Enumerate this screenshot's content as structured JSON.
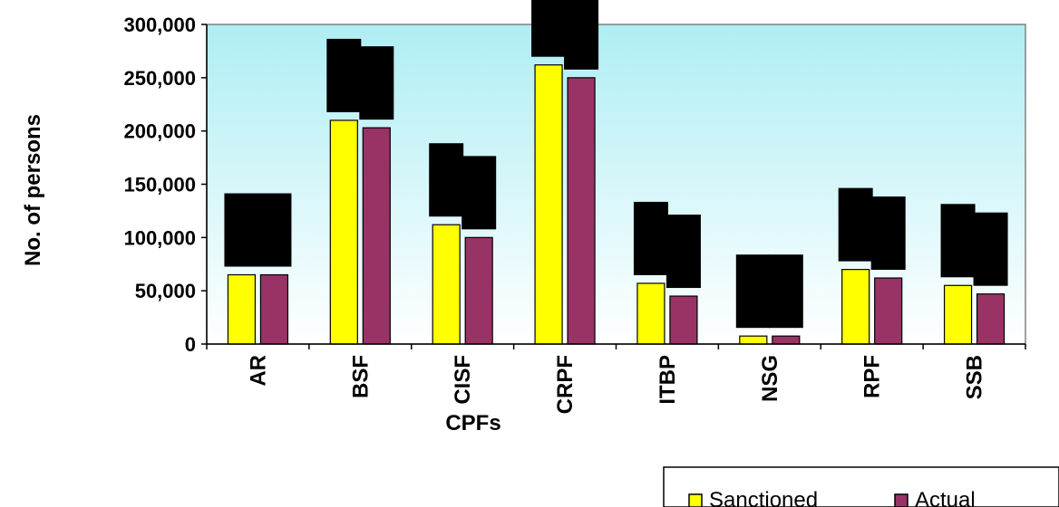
{
  "chart_data": {
    "type": "bar",
    "title": "",
    "xlabel": "CPFs",
    "ylabel": "No. of persons",
    "categories": [
      "AR",
      "BSF",
      "CISF",
      "CRPF",
      "ITBP",
      "NSG",
      "RPF",
      "SSB"
    ],
    "series": [
      {
        "name": "Sanctioned",
        "color": "#ffff00",
        "values": [
          65000,
          210000,
          112000,
          262000,
          57000,
          7500,
          70000,
          55000
        ]
      },
      {
        "name": "Actual",
        "color": "#993366",
        "values": [
          65000,
          203000,
          100000,
          250000,
          45000,
          7500,
          62000,
          47000
        ]
      }
    ],
    "ylim": [
      0,
      300000
    ],
    "yticks": [
      0,
      50000,
      100000,
      150000,
      200000,
      250000,
      300000
    ],
    "ytick_labels": [
      "0",
      "50,000",
      "100,000",
      "150,000",
      "200,000",
      "250,000",
      "300,000"
    ],
    "grid": false,
    "plot_background": "gradient light-cyan to white",
    "legend_position": "bottom-right",
    "label_boxes": "black redaction boxes above each bar"
  }
}
